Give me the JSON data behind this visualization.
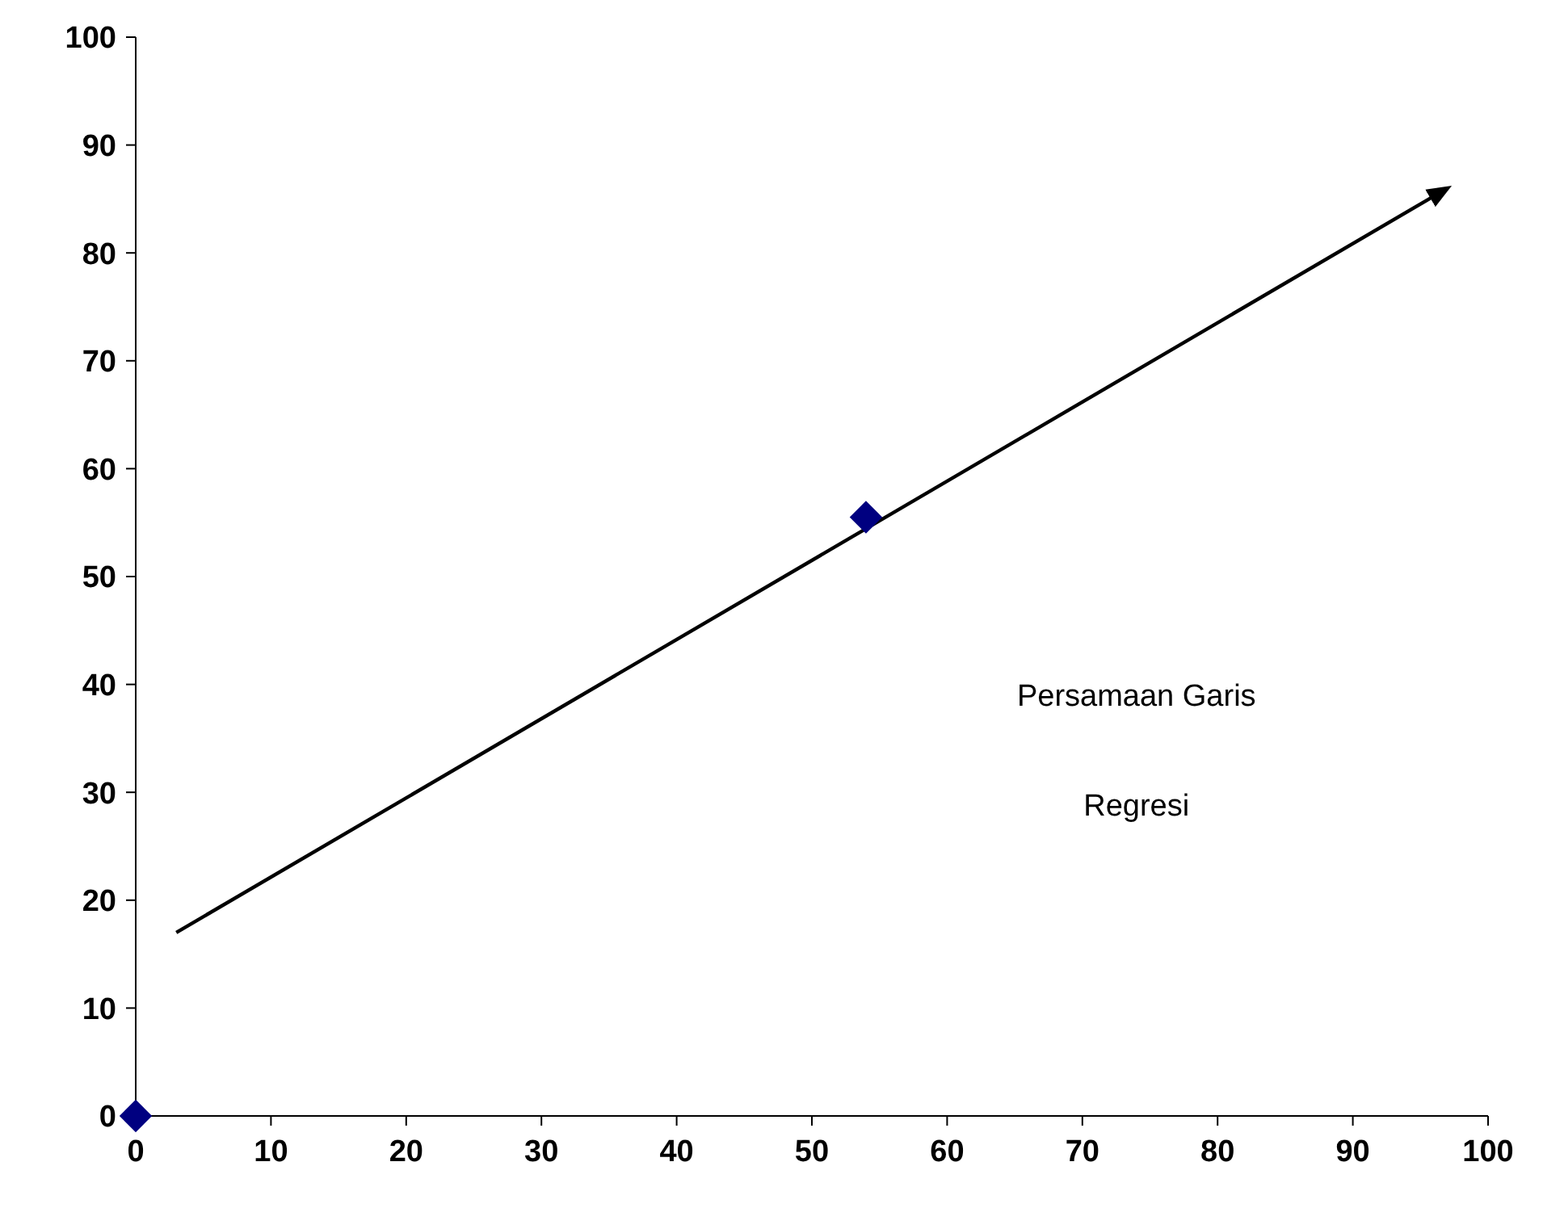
{
  "chart_data": {
    "type": "scatter",
    "marker": "diamond",
    "grid": false,
    "xlim": [
      0,
      100
    ],
    "xticks": [
      0,
      10,
      20,
      30,
      40,
      50,
      60,
      70,
      80,
      90,
      100
    ],
    "ylim": [
      0,
      100
    ],
    "yticks": [
      0,
      10,
      20,
      30,
      40,
      50,
      60,
      70,
      80,
      90,
      100
    ],
    "series": [
      {
        "color": "#000080",
        "x": [
          0,
          54
        ],
        "values": [
          0,
          55.5
        ]
      },
      {
        "type": "line",
        "color": "#000000",
        "x": [
          3,
          97
        ],
        "values": [
          17,
          86
        ],
        "marker": "none",
        "line_style": "solid"
      }
    ],
    "annotations": [
      "Persamaan Garis\nRegresi"
    ]
  }
}
